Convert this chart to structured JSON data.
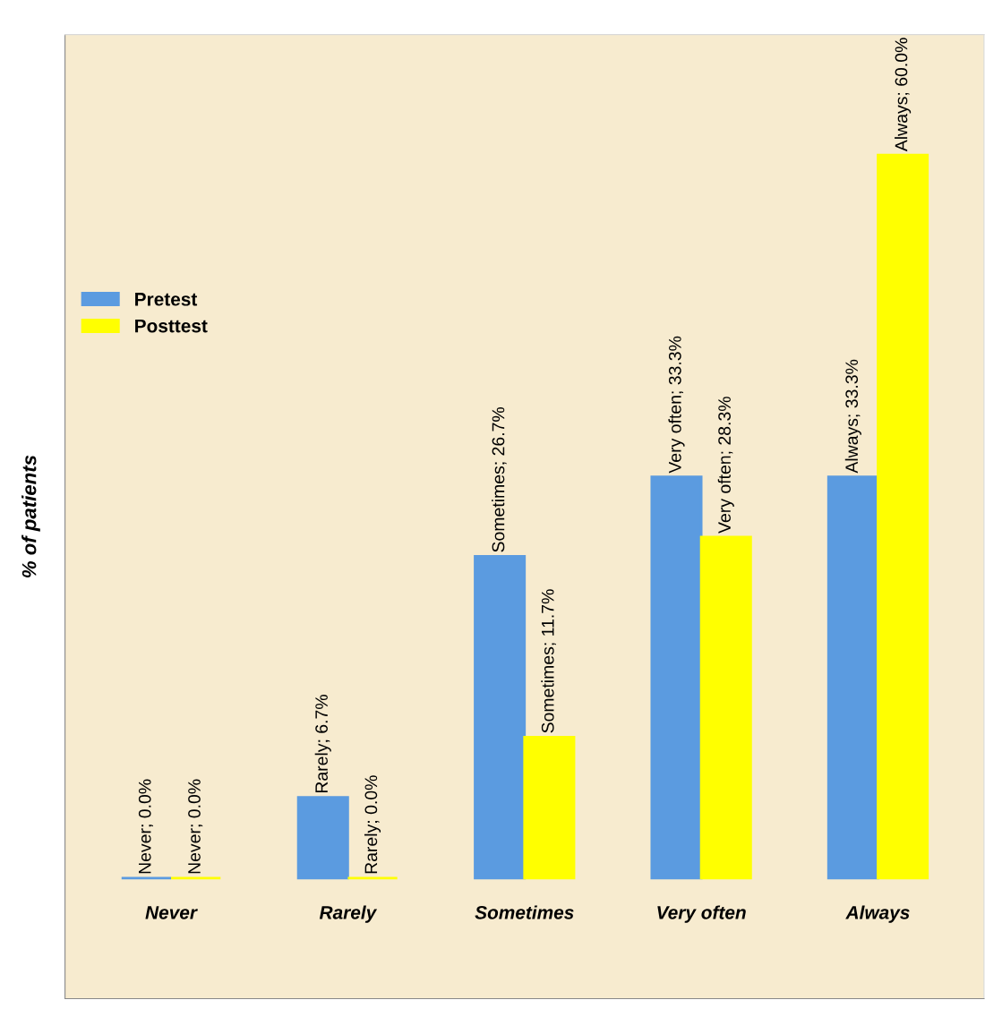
{
  "chart_data": {
    "type": "bar",
    "ylabel": "% of patients",
    "categories": [
      "Never",
      "Rarely",
      "Sometimes",
      "Very often",
      "Always"
    ],
    "series": [
      {
        "name": "Pretest",
        "color": "#5b9be0",
        "values": [
          0.0,
          6.7,
          26.7,
          33.3,
          33.3
        ],
        "value_labels": [
          "Never; 0.0%",
          "Rarely; 6.7%",
          "Sometimes; 26.7%",
          "Very often; 33.3%",
          "Always; 33.3%"
        ]
      },
      {
        "name": "Posttest",
        "color": "#ffff00",
        "values": [
          0.0,
          0.0,
          11.7,
          28.3,
          60.0
        ],
        "value_labels": [
          "Never; 0.0%",
          "Rarely; 0.0%",
          "Sometimes; 11.7%",
          "Very often; 28.3%",
          "Always; 60.0%"
        ]
      }
    ],
    "ylim": [
      -10,
      70
    ],
    "tick_labels": "x",
    "grid": false,
    "legend": "center left"
  }
}
